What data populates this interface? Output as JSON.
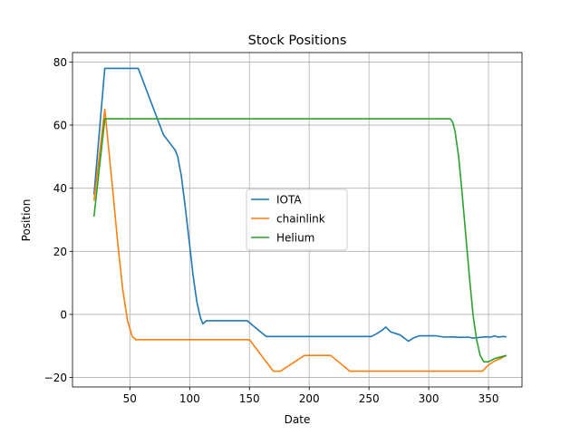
{
  "chart_data": {
    "type": "line",
    "title": "Stock Positions",
    "xlabel": "Date",
    "ylabel": "Position",
    "xlim": [
      2,
      378
    ],
    "ylim": [
      -23,
      83
    ],
    "xticks": [
      50,
      100,
      150,
      200,
      250,
      300,
      350
    ],
    "yticks": [
      -20,
      0,
      20,
      40,
      60,
      80
    ],
    "grid": true,
    "legend_position": "center",
    "series": [
      {
        "name": "IOTA",
        "color": "#1f77b4",
        "points": [
          [
            20,
            38
          ],
          [
            29,
            78
          ],
          [
            57,
            78
          ],
          [
            78,
            57
          ],
          [
            84,
            54
          ],
          [
            88,
            52
          ],
          [
            90,
            50
          ],
          [
            93,
            44
          ],
          [
            96,
            35
          ],
          [
            100,
            22
          ],
          [
            103,
            12
          ],
          [
            106,
            4
          ],
          [
            109,
            -1
          ],
          [
            111,
            -3
          ],
          [
            114,
            -2
          ],
          [
            148,
            -2
          ],
          [
            164,
            -7
          ],
          [
            252,
            -7
          ],
          [
            257,
            -6
          ],
          [
            261,
            -5
          ],
          [
            264,
            -4
          ],
          [
            268,
            -5.5
          ],
          [
            276,
            -6.5
          ],
          [
            283,
            -8.5
          ],
          [
            287,
            -7.5
          ],
          [
            292,
            -6.8
          ],
          [
            306,
            -6.8
          ],
          [
            313,
            -7.2
          ],
          [
            320,
            -7.1
          ],
          [
            326,
            -7.3
          ],
          [
            333,
            -7.2
          ],
          [
            337,
            -7.5
          ],
          [
            343,
            -7.3
          ],
          [
            348,
            -7.1
          ],
          [
            352,
            -7.2
          ],
          [
            355,
            -6.8
          ],
          [
            358,
            -7.2
          ],
          [
            362,
            -7.0
          ],
          [
            365,
            -7.1
          ]
        ]
      },
      {
        "name": "chainlink",
        "color": "#ff7f0e",
        "points": [
          [
            20,
            36
          ],
          [
            29,
            65
          ],
          [
            35,
            42
          ],
          [
            40,
            22
          ],
          [
            44,
            8
          ],
          [
            48,
            -2
          ],
          [
            52,
            -7
          ],
          [
            55,
            -8
          ],
          [
            150,
            -8
          ],
          [
            170,
            -18
          ],
          [
            176,
            -18
          ],
          [
            196,
            -13
          ],
          [
            218,
            -13
          ],
          [
            234,
            -18
          ],
          [
            345,
            -18
          ],
          [
            350,
            -16
          ],
          [
            355,
            -14.8
          ],
          [
            360,
            -14
          ],
          [
            365,
            -13
          ]
        ]
      },
      {
        "name": "Helium",
        "color": "#2ca02c",
        "points": [
          [
            20,
            31
          ],
          [
            29,
            62
          ],
          [
            318,
            62
          ],
          [
            320,
            61
          ],
          [
            322,
            58
          ],
          [
            325,
            50
          ],
          [
            328,
            38
          ],
          [
            331,
            25
          ],
          [
            334,
            12
          ],
          [
            337,
            0
          ],
          [
            340,
            -8
          ],
          [
            343,
            -13
          ],
          [
            346,
            -15
          ],
          [
            350,
            -15
          ],
          [
            355,
            -14
          ],
          [
            360,
            -13.5
          ],
          [
            365,
            -13
          ]
        ]
      }
    ]
  }
}
